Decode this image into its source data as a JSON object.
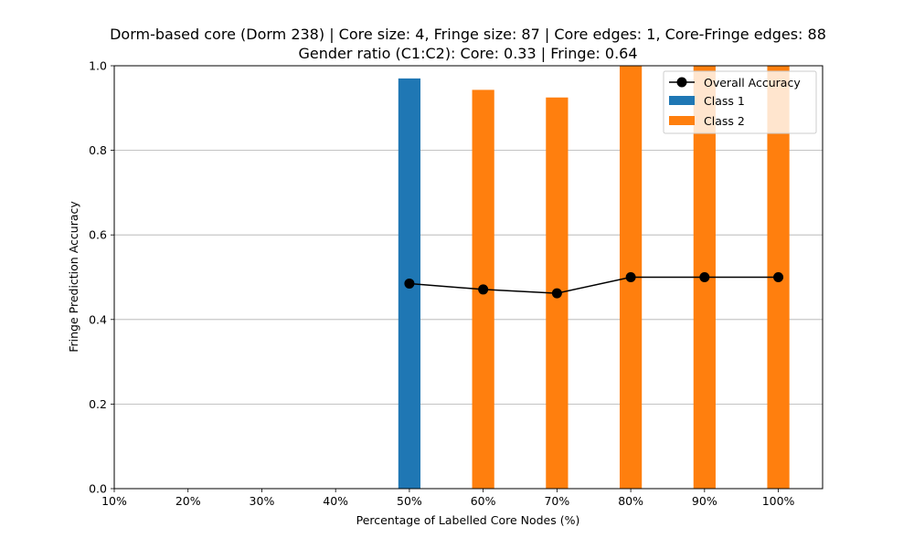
{
  "chart_data": {
    "type": "bar",
    "title": "Dorm-based core (Dorm 238) | Core size: 4, Fringe size: 87 | Core edges: 1, Core-Fringe edges: 88",
    "subtitle": "Gender ratio (C1:C2): Core: 0.33 | Fringe: 0.64",
    "xlabel": "Percentage of Labelled Core Nodes (%)",
    "ylabel": "Fringe Prediction Accuracy",
    "x_ticks": [
      "10%",
      "20%",
      "30%",
      "40%",
      "50%",
      "60%",
      "70%",
      "80%",
      "90%",
      "100%"
    ],
    "x_tick_values": [
      10,
      20,
      30,
      40,
      50,
      60,
      70,
      80,
      90,
      100
    ],
    "xlim": [
      10,
      106
    ],
    "y_ticks": [
      "0.0",
      "0.2",
      "0.4",
      "0.6",
      "0.8",
      "1.0"
    ],
    "y_tick_values": [
      0,
      0.2,
      0.4,
      0.6,
      0.8,
      1.0
    ],
    "ylim": [
      0,
      1.0
    ],
    "grid": "y",
    "legend_position": "top-right",
    "bars": [
      {
        "x": 50,
        "series": "Class 1",
        "value": 0.97
      },
      {
        "x": 60,
        "series": "Class 2",
        "value": 0.943
      },
      {
        "x": 70,
        "series": "Class 2",
        "value": 0.925
      },
      {
        "x": 80,
        "series": "Class 2",
        "value": 1.0
      },
      {
        "x": 90,
        "series": "Class 2",
        "value": 1.0
      },
      {
        "x": 100,
        "series": "Class 2",
        "value": 1.0
      }
    ],
    "bar_width_units": 3,
    "series": [
      {
        "name": "Overall Accuracy",
        "kind": "line",
        "color": "#000000",
        "x": [
          50,
          60,
          70,
          80,
          90,
          100
        ],
        "values": [
          0.485,
          0.471,
          0.462,
          0.5,
          0.5,
          0.5
        ]
      },
      {
        "name": "Class 1",
        "kind": "bar",
        "color": "#1f77b4"
      },
      {
        "name": "Class 2",
        "kind": "bar",
        "color": "#ff7f0e"
      }
    ]
  }
}
